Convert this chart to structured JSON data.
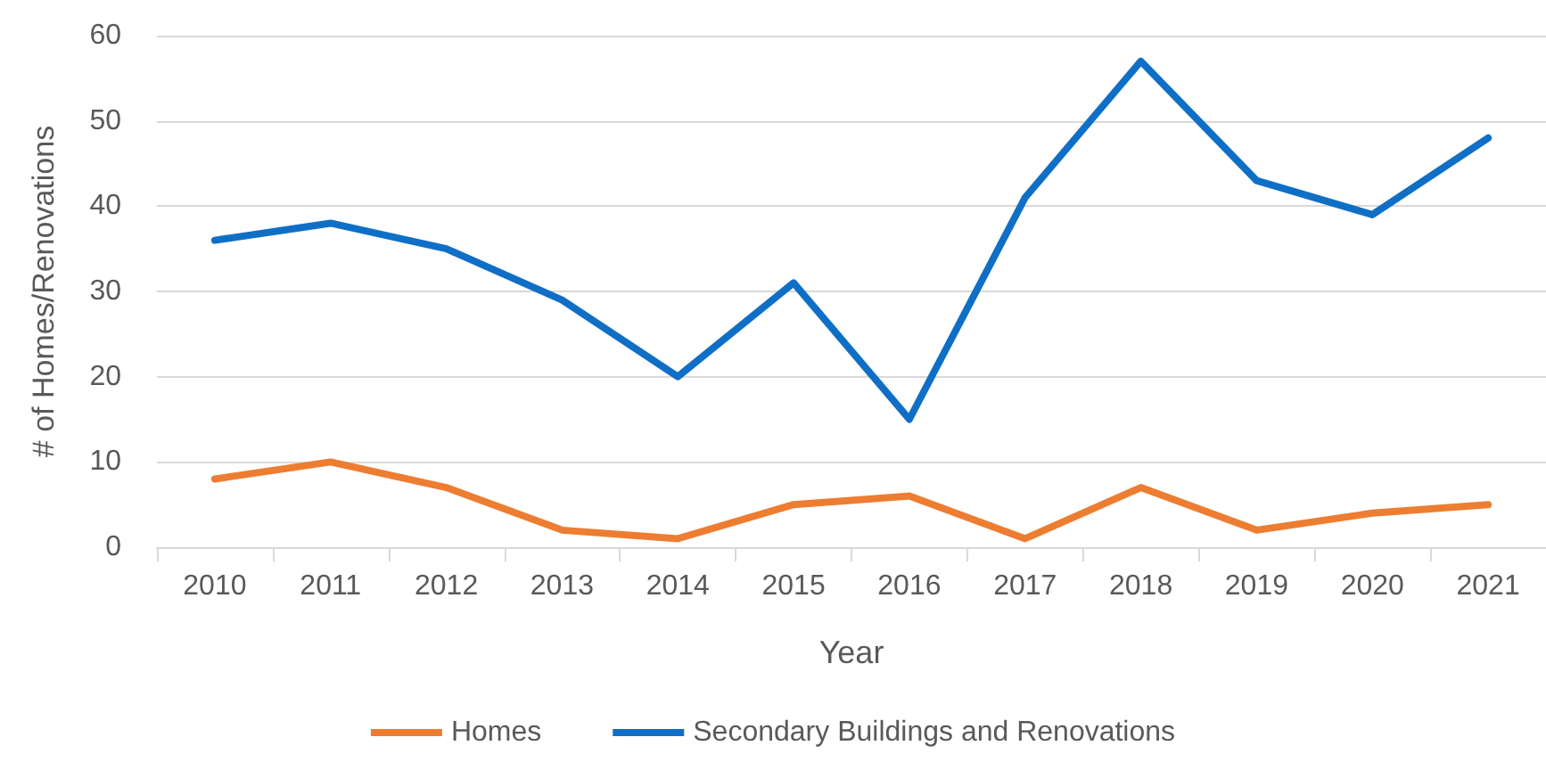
{
  "chart_data": {
    "type": "line",
    "xlabel": "Year",
    "ylabel": "# of Homes/Renovations",
    "categories": [
      "2010",
      "2011",
      "2012",
      "2013",
      "2014",
      "2015",
      "2016",
      "2017",
      "2018",
      "2019",
      "2020",
      "2021"
    ],
    "series": [
      {
        "name": "Homes",
        "color": "#ed7d31",
        "values": [
          8,
          10,
          7,
          2,
          1,
          5,
          6,
          1,
          7,
          2,
          4,
          5
        ]
      },
      {
        "name": "Secondary Buildings and Renovations",
        "color": "#0f6fc6",
        "values": [
          36,
          38,
          35,
          29,
          20,
          31,
          15,
          41,
          57,
          43,
          39,
          48
        ]
      }
    ],
    "ylim": [
      0,
      60
    ],
    "yticks": [
      0,
      10,
      20,
      30,
      40,
      50,
      60
    ],
    "grid": "y",
    "legend": "bottom",
    "marker": "none",
    "line_style": "solid"
  }
}
